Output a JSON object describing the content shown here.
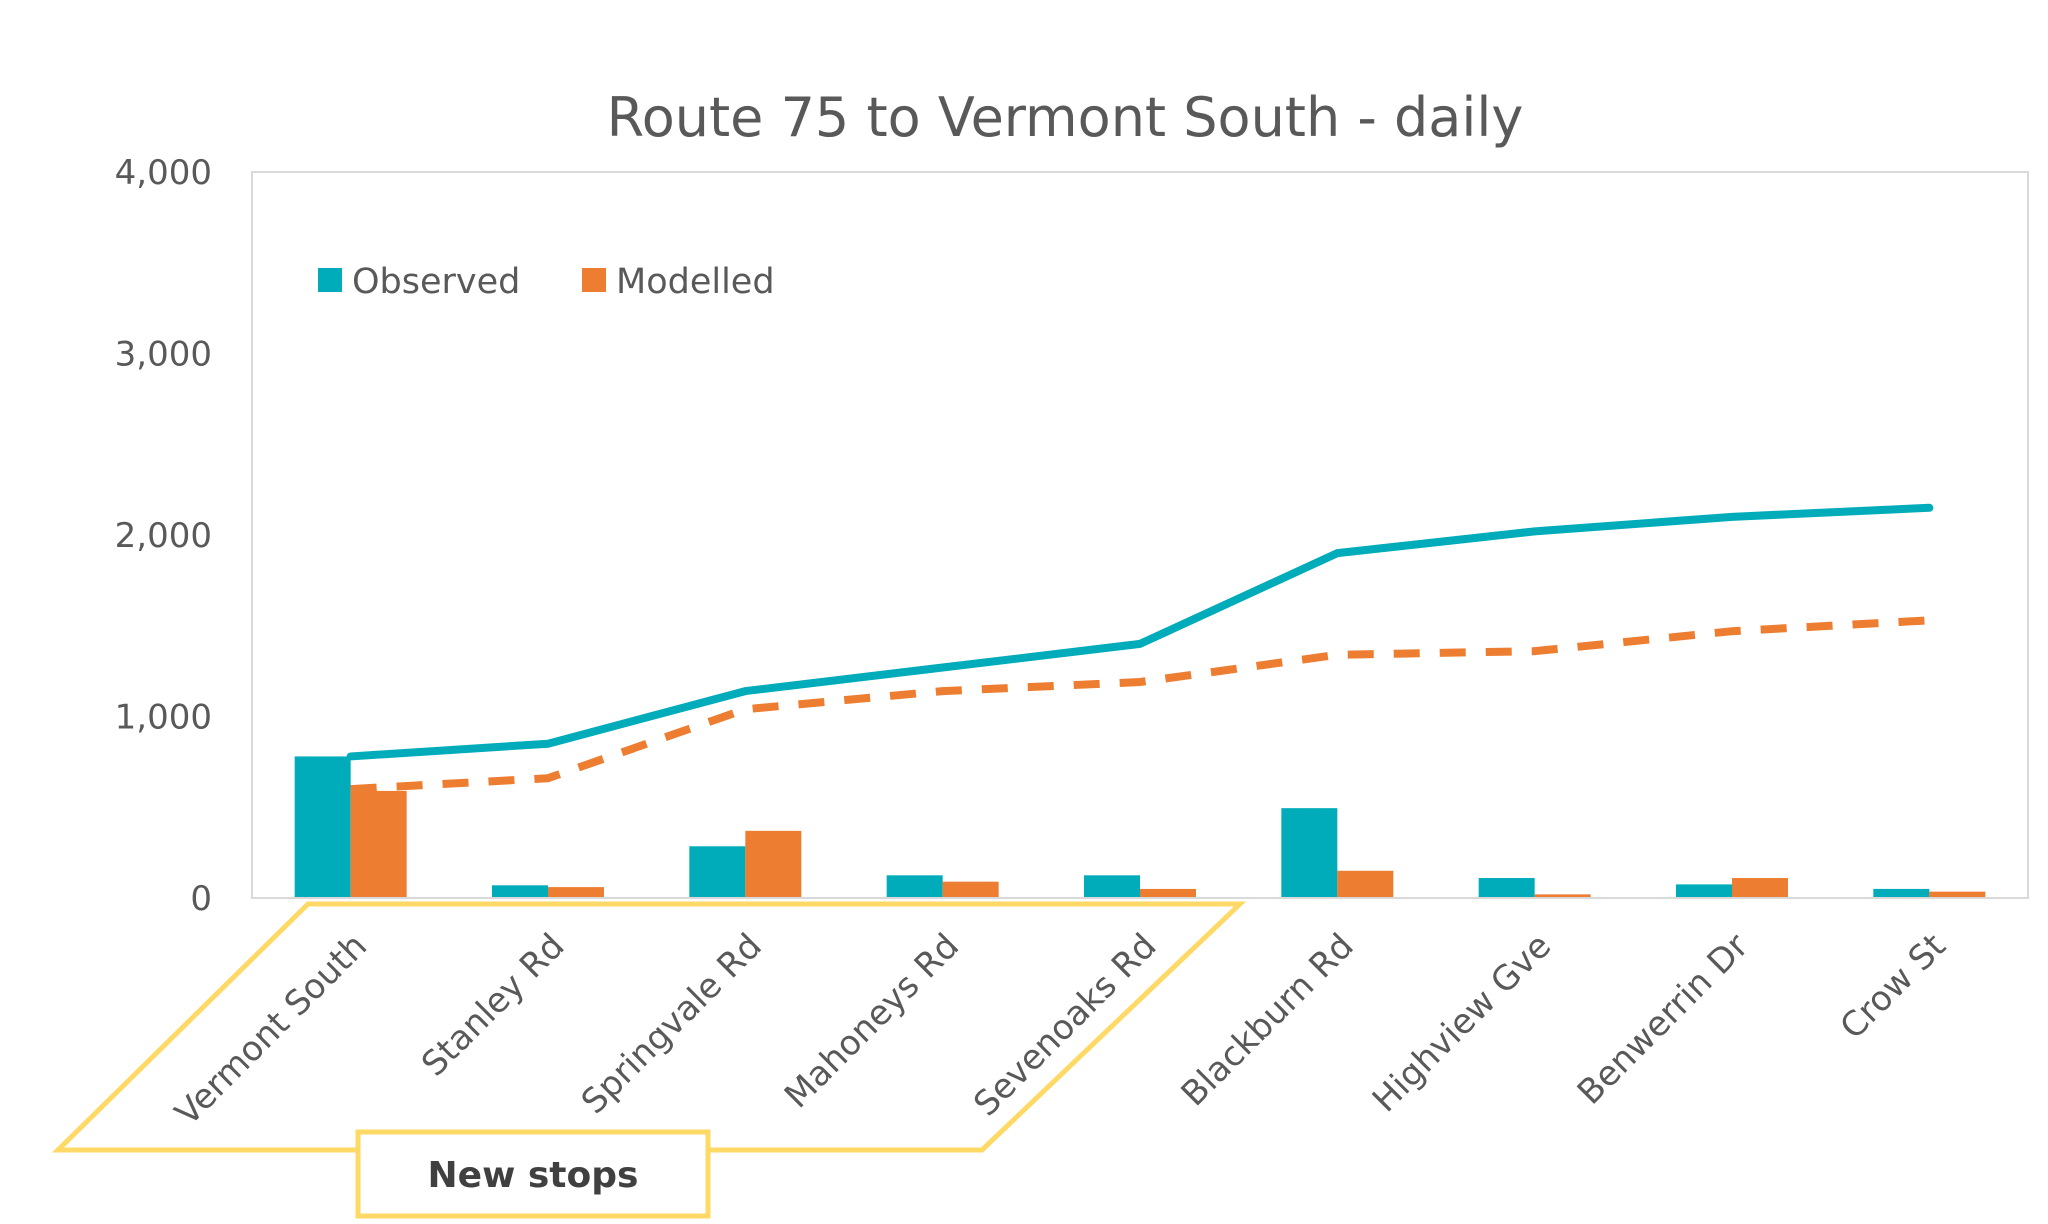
{
  "chart_data": {
    "type": "bar",
    "title": "Route 75 to Vermont South - daily",
    "xlabel": "",
    "ylabel": "",
    "ylim": [
      0,
      4000
    ],
    "yticks": [
      0,
      1000,
      2000,
      3000,
      4000
    ],
    "ytick_labels": [
      "0",
      "1,000",
      "2,000",
      "3,000",
      "4,000"
    ],
    "categories": [
      "Vermont South",
      "Stanley Rd",
      "Springvale Rd",
      "Mahoneys Rd",
      "Sevenoaks Rd",
      "Blackburn Rd",
      "Highview Gve",
      "Benwerrin Dr",
      "Crow St"
    ],
    "series": [
      {
        "name": "Observed",
        "kind": "bar",
        "color": "#00ACBA",
        "values": [
          780,
          70,
          285,
          125,
          125,
          495,
          110,
          75,
          50
        ]
      },
      {
        "name": "Modelled",
        "kind": "bar",
        "color": "#ED7D31",
        "values": [
          590,
          60,
          370,
          90,
          50,
          150,
          20,
          110,
          35
        ]
      },
      {
        "name": "",
        "kind": "line",
        "style": "solid",
        "color": "#00ACBA",
        "values": [
          780,
          850,
          1140,
          1270,
          1400,
          1900,
          2020,
          2100,
          2150
        ]
      },
      {
        "name": "",
        "kind": "line",
        "style": "dashed",
        "color": "#ED7D31",
        "values": [
          600,
          660,
          1040,
          1140,
          1190,
          1340,
          1360,
          1470,
          1530
        ]
      }
    ],
    "legend": {
      "position": "top-left",
      "items": [
        "Observed",
        "Modelled"
      ]
    },
    "grid": false,
    "annotation": {
      "text": "New stops",
      "color": "#FFD966",
      "categories": [
        "Vermont South",
        "Stanley Rd",
        "Springvale Rd",
        "Mahoneys Rd",
        "Sevenoaks Rd"
      ]
    }
  }
}
